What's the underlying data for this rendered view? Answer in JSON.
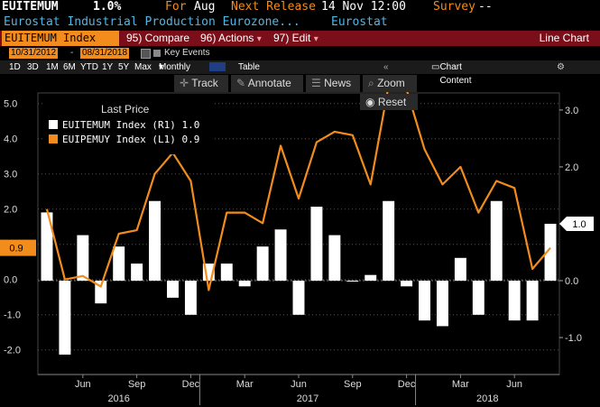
{
  "header": {
    "ticker": "EUITEMUM",
    "value": "1.0%",
    "for_label": "For",
    "for_value": "Aug",
    "next_release_label": "Next Release",
    "next_release_value": "14 Nov 12:00",
    "survey_label": "Survey",
    "survey_value": "--",
    "description": "Eurostat Industrial Production Eurozone...",
    "source": "Eurostat"
  },
  "toolbar": {
    "ticker_field": "EUITEMUM Index",
    "compare": "95) Compare",
    "actions": "96) Actions",
    "edit": "97) Edit",
    "chart_type": "Line Chart"
  },
  "daterow": {
    "start": "10/31/2012",
    "end": "08/31/2018",
    "key_events": "Key Events"
  },
  "periods": [
    "1D",
    "3D",
    "1M",
    "6M",
    "YTD",
    "1Y",
    "5Y",
    "Max"
  ],
  "frequency": "Monthly",
  "table_label": "Table",
  "chart_content_label": "Chart Content",
  "tools": {
    "track": "Track",
    "annotate": "Annotate",
    "news": "News",
    "zoom": "Zoom",
    "reset": "Reset"
  },
  "legend": {
    "title": "Last Price",
    "rows": [
      {
        "label": "EUITEMUM Index  (R1)",
        "value": "1.0",
        "color": "#ffffff"
      },
      {
        "label": "EUIPEMUY Index  (L1)",
        "value": "0.9",
        "color": "#f28c1c"
      }
    ]
  },
  "colors": {
    "bars": "#ffffff",
    "line": "#f28c1c",
    "toolbar_bg": "#7a0f1a",
    "selected": "#1f3e86"
  },
  "chart_data": {
    "type": "bar",
    "categories": [
      "Apr-16",
      "May-16",
      "Jun-16",
      "Jul-16",
      "Aug-16",
      "Sep-16",
      "Oct-16",
      "Nov-16",
      "Dec-16",
      "Jan-17",
      "Feb-17",
      "Mar-17",
      "Apr-17",
      "May-17",
      "Jun-17",
      "Jul-17",
      "Aug-17",
      "Sep-17",
      "Oct-17",
      "Nov-17",
      "Dec-17",
      "Jan-18",
      "Feb-18",
      "Mar-18",
      "Apr-18",
      "May-18",
      "Jun-18",
      "Jul-18",
      "Aug-18"
    ],
    "series": [
      {
        "name": "EUITEMUM Index (R1)",
        "type": "bar",
        "axis": "right",
        "values": [
          1.2,
          -1.3,
          0.8,
          -0.4,
          0.6,
          0.3,
          1.4,
          -0.3,
          -0.6,
          0.3,
          0.3,
          -0.1,
          0.6,
          0.9,
          -0.6,
          1.3,
          0.8,
          0.0,
          0.1,
          1.4,
          -0.1,
          -0.7,
          -0.8,
          0.4,
          -0.6,
          1.4,
          -0.7,
          -0.7,
          1.0
        ]
      },
      {
        "name": "EUIPEMUY Index (L1)",
        "type": "line",
        "axis": "left",
        "values": [
          2.0,
          0.0,
          0.1,
          -0.2,
          1.3,
          1.4,
          3.0,
          3.6,
          2.8,
          -0.3,
          1.9,
          1.9,
          1.6,
          3.8,
          2.3,
          3.9,
          4.2,
          4.1,
          2.7,
          5.5,
          5.4,
          3.7,
          2.7,
          3.2,
          1.9,
          2.8,
          2.6,
          0.3,
          0.9
        ]
      }
    ],
    "left_axis": {
      "ticks": [
        "5.0",
        "4.0",
        "3.0",
        "2.0",
        "1.0",
        "0.0",
        "-1.0",
        "-2.0"
      ],
      "range": [
        -2.7,
        5.3
      ]
    },
    "right_axis": {
      "ticks": [
        "3.0",
        "2.0",
        "1.0",
        "0.0",
        "-1.0"
      ],
      "range": [
        -1.65,
        3.3
      ]
    },
    "x_month_labels": [
      "Jun",
      "Sep",
      "Dec",
      "Mar",
      "Jun",
      "Sep",
      "Dec",
      "Mar",
      "Jun"
    ],
    "x_year_labels": [
      "2016",
      "2017",
      "2018"
    ],
    "last_value_labels": {
      "left": "0.9",
      "right": "1.0"
    }
  }
}
